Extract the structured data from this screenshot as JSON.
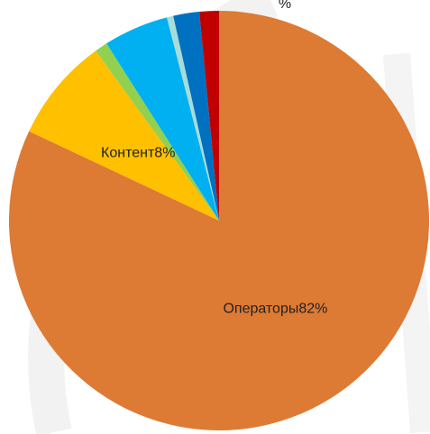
{
  "chart_data": {
    "type": "pie",
    "categories": [
      "Операторы",
      "Контент",
      null,
      null,
      null,
      null,
      null
    ],
    "values": [
      82,
      8,
      1,
      5,
      0.5,
      2,
      1.5
    ],
    "value_labels": [
      "82%",
      "8%",
      null,
      null,
      null,
      null,
      null
    ],
    "colors": [
      "#dd7a34",
      "#ffc000",
      "#92d050",
      "#00b0f0",
      "#a8dcd9",
      "#0070c0",
      "#c00000"
    ],
    "annotations": [
      "%"
    ]
  }
}
